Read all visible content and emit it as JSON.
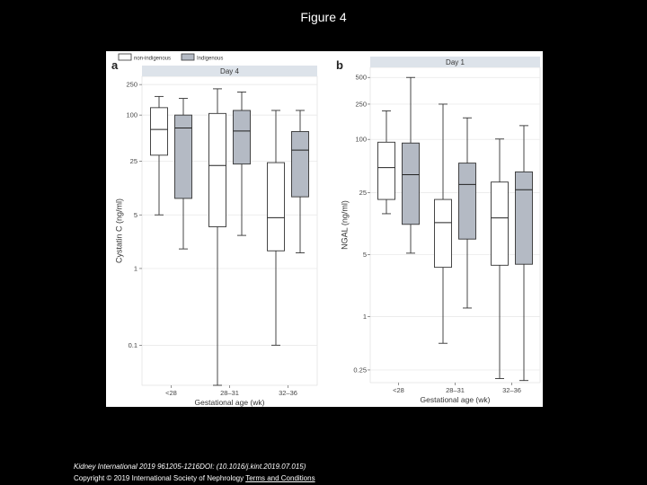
{
  "page": {
    "figure_title": "Figure 4"
  },
  "legend": {
    "items": [
      {
        "label": "non-indigenous",
        "color": "#ffffff"
      },
      {
        "label": "Indigenous",
        "color": "#b4bac4"
      }
    ]
  },
  "footer": {
    "citation": "Kidney International 2019 961205-1216DOI: (10.1016/j.kint.2019.07.015)",
    "copyright": "Copyright © 2019 International Society of Nephrology",
    "terms_link": "Terms and Conditions"
  },
  "chart_data": [
    {
      "panel_label": "a",
      "type": "box",
      "title": "Day 4",
      "xlabel": "Gestational age (wk)",
      "ylabel": "Cystatin C (ng/ml)",
      "yscale": "log",
      "ylim": [
        0.03,
        320
      ],
      "yticks": [
        0.1,
        1,
        5,
        25,
        100,
        250
      ],
      "ytick_labels": [
        "0.1",
        "1",
        "5",
        "25",
        "100",
        "250"
      ],
      "categories": [
        "<28",
        "28–31",
        "32–36"
      ],
      "series": [
        {
          "name": "non-indigenous",
          "color": "#ffffff",
          "boxes": [
            {
              "min": 5,
              "q1": 30,
              "median": 65,
              "q3": 125,
              "max": 175
            },
            {
              "min": 0.03,
              "q1": 3.5,
              "median": 22,
              "q3": 105,
              "max": 220
            },
            {
              "min": 0.1,
              "q1": 1.7,
              "median": 4.6,
              "q3": 24,
              "max": 115
            }
          ]
        },
        {
          "name": "Indigenous",
          "color": "#b4bac4",
          "boxes": [
            {
              "min": 1.8,
              "q1": 8.2,
              "median": 68,
              "q3": 100,
              "max": 165
            },
            {
              "min": 2.7,
              "q1": 23,
              "median": 62,
              "q3": 115,
              "max": 200
            },
            {
              "min": 1.6,
              "q1": 8.6,
              "median": 35,
              "q3": 61,
              "max": 115
            }
          ]
        }
      ]
    },
    {
      "panel_label": "b",
      "type": "box",
      "title": "Day 1",
      "xlabel": "Gestational age (wk)",
      "ylabel": "NGAL (ng/ml)",
      "yscale": "log",
      "ylim": [
        0.18,
        650
      ],
      "yticks": [
        0.25,
        1,
        5,
        25,
        100,
        250,
        500
      ],
      "ytick_labels": [
        "0.25",
        "1",
        "5",
        "25",
        "100",
        "250",
        "500"
      ],
      "categories": [
        "<28",
        "28–31",
        "32–36"
      ],
      "series": [
        {
          "name": "non-indigenous",
          "color": "#ffffff",
          "boxes": [
            {
              "min": 14.5,
              "q1": 21,
              "median": 48,
              "q3": 93,
              "max": 210
            },
            {
              "min": 0.5,
              "q1": 3.6,
              "median": 11.5,
              "q3": 21,
              "max": 250
            },
            {
              "min": 0.2,
              "q1": 3.8,
              "median": 13,
              "q3": 33,
              "max": 101
            }
          ]
        },
        {
          "name": "Indigenous",
          "color": "#b4bac4",
          "boxes": [
            {
              "min": 5.2,
              "q1": 11,
              "median": 40,
              "q3": 91,
              "max": 500
            },
            {
              "min": 1.25,
              "q1": 7.5,
              "median": 31,
              "q3": 54,
              "max": 175
            },
            {
              "min": 0.19,
              "q1": 3.9,
              "median": 27,
              "q3": 43,
              "max": 143
            }
          ]
        }
      ]
    }
  ]
}
